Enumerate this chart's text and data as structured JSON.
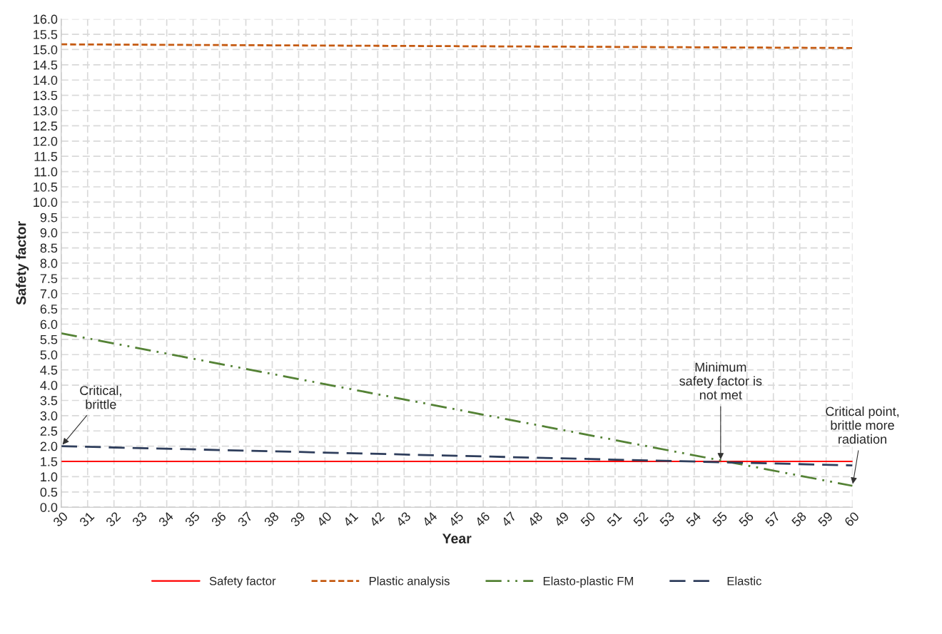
{
  "chart_data": {
    "type": "line",
    "xlabel": "Year",
    "ylabel": "Safety factor",
    "x": [
      30,
      60
    ],
    "series": [
      {
        "name": "Safety factor",
        "color": "#ff0000",
        "values": [
          1.5,
          1.5
        ],
        "line_style": "solid"
      },
      {
        "name": "Plastic analysis",
        "color": "#c55a11",
        "values": [
          15.17,
          15.05
        ],
        "line_style": "dashed"
      },
      {
        "name": "Elasto-plastic FM",
        "color": "#548235",
        "values": [
          5.7,
          0.7
        ],
        "line_style": "dashdot"
      },
      {
        "name": "Elastic",
        "color": "#2f3e5c",
        "values": [
          2.0,
          1.37
        ],
        "line_style": "longdash"
      }
    ],
    "xlim": [
      30,
      60
    ],
    "xticks": [
      30,
      31,
      32,
      33,
      34,
      35,
      36,
      37,
      38,
      39,
      40,
      41,
      42,
      43,
      44,
      45,
      46,
      47,
      48,
      49,
      50,
      51,
      52,
      53,
      54,
      55,
      56,
      57,
      58,
      59,
      60
    ],
    "ylim": [
      0,
      16
    ],
    "yticks": [
      {
        "value": 0,
        "label": "0.0"
      },
      {
        "value": 0.5,
        "label": "0.5"
      },
      {
        "value": 1,
        "label": "1.0"
      },
      {
        "value": 1.5,
        "label": "1.5"
      },
      {
        "value": 2,
        "label": "2.0"
      },
      {
        "value": 2.5,
        "label": "2.5"
      },
      {
        "value": 3,
        "label": "3.0"
      },
      {
        "value": 3.5,
        "label": "3.5"
      },
      {
        "value": 4,
        "label": "4.0"
      },
      {
        "value": 4.5,
        "label": "4.5"
      },
      {
        "value": 5,
        "label": "5.0"
      },
      {
        "value": 5.5,
        "label": "5.5"
      },
      {
        "value": 6,
        "label": "6.0"
      },
      {
        "value": 6.5,
        "label": "6.5"
      },
      {
        "value": 7,
        "label": "7.0"
      },
      {
        "value": 7.5,
        "label": "7.5"
      },
      {
        "value": 8,
        "label": "8.0"
      },
      {
        "value": 8.5,
        "label": "8.5"
      },
      {
        "value": 9,
        "label": "9.0"
      },
      {
        "value": 9.5,
        "label": "9.5"
      },
      {
        "value": 10,
        "label": "10.0"
      },
      {
        "value": 10.5,
        "label": "10.5"
      },
      {
        "value": 11,
        "label": "11.0"
      },
      {
        "value": 11.5,
        "label": "11.5"
      },
      {
        "value": 12,
        "label": "12.0"
      },
      {
        "value": 12.5,
        "label": "12.5"
      },
      {
        "value": 13,
        "label": "13.0"
      },
      {
        "value": 13.5,
        "label": "13.5"
      },
      {
        "value": 14,
        "label": "14.0"
      },
      {
        "value": 14.5,
        "label": "14.5"
      },
      {
        "value": 15,
        "label": "15.0"
      },
      {
        "value": 15.5,
        "label": "15.5"
      },
      {
        "value": 16,
        "label": "16.0"
      }
    ],
    "grid": true,
    "legend": "bottom",
    "marker": "none",
    "annotations": [
      {
        "text": "Critical,\nbrittle",
        "x": 30,
        "y": 2.0
      },
      {
        "text": "Minimum\nsafety factor is\nnot met",
        "x": 55,
        "y": 1.5
      },
      {
        "text": "Critical point,\nbrittle more\nradiation",
        "x": 60,
        "y": 0.7
      }
    ]
  }
}
